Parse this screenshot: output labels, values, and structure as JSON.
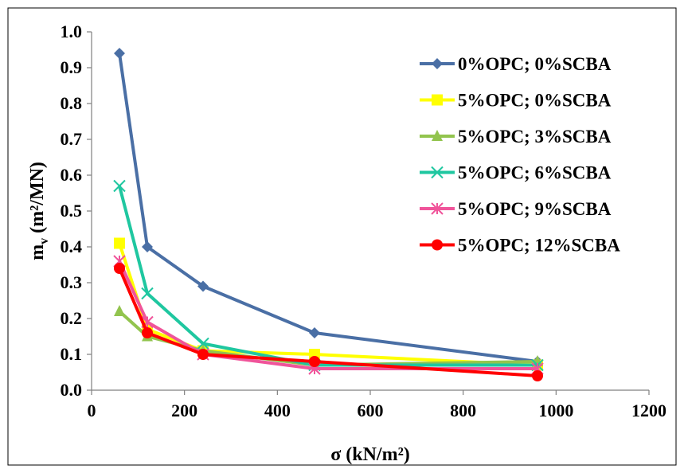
{
  "chart_data": {
    "type": "line",
    "title": "",
    "xlabel": "σ (kN/m²)",
    "ylabel": {
      "main": "m",
      "sub": "v",
      "unit": " (m²/MN)"
    },
    "xlim": [
      0,
      1200
    ],
    "ylim": [
      0,
      1.0
    ],
    "xticks": [
      0,
      200,
      400,
      600,
      800,
      1000,
      1200
    ],
    "yticks": [
      0.0,
      0.1,
      0.2,
      0.3,
      0.4,
      0.5,
      0.6,
      0.7,
      0.8,
      0.9,
      1.0
    ],
    "ytick_labels": [
      "0.0",
      "0.1",
      "0.2",
      "0.3",
      "0.4",
      "0.5",
      "0.6",
      "0.7",
      "0.8",
      "0.9",
      "1.0"
    ],
    "grid": false,
    "legend": "right",
    "x": [
      60,
      120,
      240,
      480,
      960
    ],
    "series": [
      {
        "name": "0%OPC; 0%SCBA",
        "color": "#4A6FA5",
        "marker": "diamond",
        "values": [
          0.94,
          0.4,
          0.29,
          0.16,
          0.08
        ]
      },
      {
        "name": "5%OPC; 0%SCBA",
        "color": "#FFFF00",
        "marker": "square",
        "values": [
          0.41,
          0.17,
          0.11,
          0.1,
          0.07
        ]
      },
      {
        "name": "5%OPC; 3%SCBA",
        "color": "#92C44E",
        "marker": "triangle",
        "values": [
          0.22,
          0.15,
          0.11,
          0.07,
          0.08
        ]
      },
      {
        "name": "5%OPC; 6%SCBA",
        "color": "#1FC7A0",
        "marker": "x",
        "values": [
          0.57,
          0.27,
          0.13,
          0.07,
          0.07
        ]
      },
      {
        "name": "5%OPC; 9%SCBA",
        "color": "#F0549A",
        "marker": "star",
        "values": [
          0.36,
          0.19,
          0.1,
          0.06,
          0.06
        ]
      },
      {
        "name": "5%OPC; 12%SCBA",
        "color": "#FF0000",
        "marker": "circle",
        "values": [
          0.34,
          0.16,
          0.1,
          0.08,
          0.04
        ]
      }
    ]
  }
}
